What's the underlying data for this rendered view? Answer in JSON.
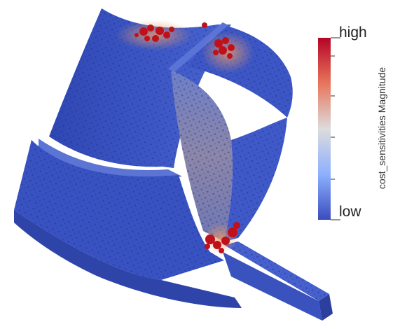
{
  "legend": {
    "title": "cost_sensitivities Magnitude",
    "high_label": "high",
    "low_label": "low",
    "colors": [
      "#b40426",
      "#e7755b",
      "#dddcdc",
      "#8db0fe",
      "#3b4cc0"
    ]
  },
  "model": {
    "base_color": "#3a55c4",
    "hot_color": "#c0101a"
  }
}
